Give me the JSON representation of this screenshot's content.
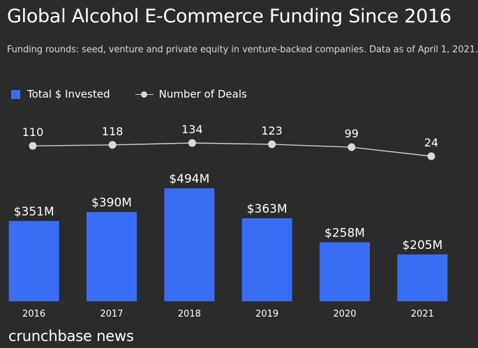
{
  "title": "Global Alcohol E-Commerce Funding Since 2016",
  "subtitle": "Funding rounds: seed, venture and private equity in venture-backed companies. Data as of April 1, 2021.",
  "brand": "crunchbase news",
  "colors": {
    "background": "#2b2b2b",
    "bar": "#3a6df5",
    "line": "#d0d0d0",
    "point": "#d9d9d9",
    "text": "#ffffff"
  },
  "chart_data": {
    "type": "bar",
    "categories": [
      "2016",
      "2017",
      "2018",
      "2019",
      "2020",
      "2021"
    ],
    "series": [
      {
        "name": "Total $ Invested",
        "type": "bar",
        "values": [
          351,
          390,
          494,
          363,
          258,
          205
        ],
        "labels": [
          "$351M",
          "$390M",
          "$494M",
          "$363M",
          "$258M",
          "$205M"
        ]
      },
      {
        "name": "Number of Deals",
        "type": "line",
        "values": [
          110,
          118,
          134,
          123,
          99,
          24
        ],
        "labels": [
          "110",
          "118",
          "134",
          "123",
          "99",
          "24"
        ]
      }
    ],
    "legend_position": "top-left",
    "grid": false
  }
}
